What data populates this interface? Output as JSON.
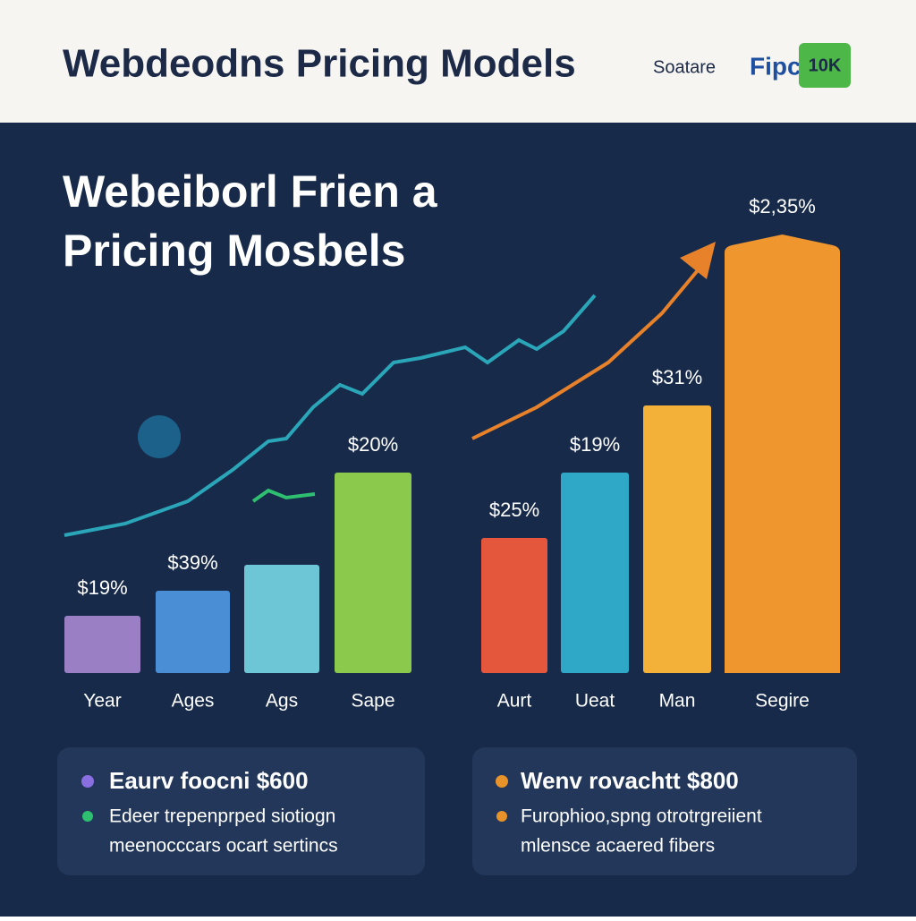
{
  "header": {
    "title": "Webdeodns Pricing Models",
    "brand": "Soatare",
    "logo_text": "Fipc",
    "logo_badge": "10K"
  },
  "chart": {
    "title_line1": "Webeiborl Frien a",
    "title_line2": "Pricing Mosbels",
    "bars": [
      {
        "label": "$19%",
        "category": "Year"
      },
      {
        "label": "$39%",
        "category": "Ages"
      },
      {
        "label": null,
        "category": "Ags"
      },
      {
        "label": "$20%",
        "category": "Sape"
      },
      {
        "label": "$25%",
        "category": "Aurt"
      },
      {
        "label": "$19%",
        "category": "Ueat"
      },
      {
        "label": "$31%",
        "category": "Man"
      },
      {
        "label": "$2,35%",
        "category": "Segire"
      }
    ]
  },
  "cards": [
    {
      "heading": "Eaurv foocni $600",
      "line1": "Edeer trepenprped siotiogn",
      "line2": "meenocccars ocart sertincs"
    },
    {
      "heading": "Wenv rovachtt $800",
      "line1": "Furophioo,spng otrotrgreiient",
      "line2": "mlensce acaered fibers"
    }
  ]
}
